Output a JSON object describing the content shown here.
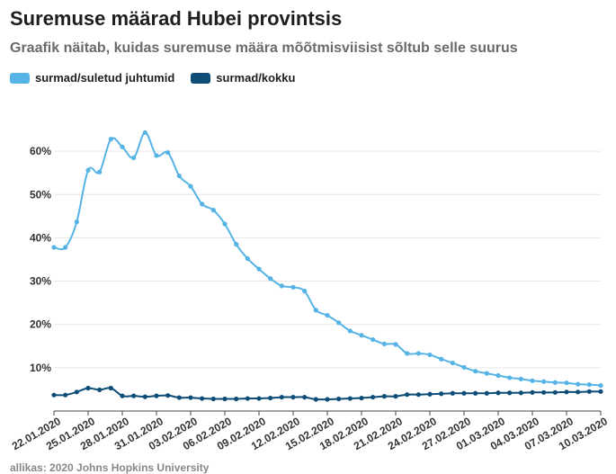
{
  "title": "Suremuse määrad Hubei provintsis",
  "subtitle": "Graafik näitab, kuidas suremuse määra mõõtmisviisist sõltub selle suurus",
  "source": "allikas: 2020 Johns Hopkins University",
  "colors": {
    "series1": "#55b3e6",
    "series2": "#0e4d78",
    "grid": "#e6e6e6",
    "axis": "#444444"
  },
  "chart_data": {
    "type": "line",
    "ylim": [
      0,
      70
    ],
    "yticks": [
      "10%",
      "20%",
      "30%",
      "40%",
      "50%",
      "60%"
    ],
    "ytick_values": [
      10,
      20,
      30,
      40,
      50,
      60
    ],
    "xticks": [
      "22.01.2020",
      "25.01.2020",
      "28.01.2020",
      "31.01.2020",
      "03.02.2020",
      "06.02.2020",
      "09.02.2020",
      "12.02.2020",
      "15.02.2020",
      "18.02.2020",
      "21.02.2020",
      "24.02.2020",
      "27.02.2020",
      "01.03.2020",
      "04.03.2020",
      "07.03.2020",
      "10.03.2020"
    ],
    "grid": true,
    "legend_position": "top-left",
    "series": [
      {
        "name": "surmad/suletud juhtumid",
        "values": [
          37.8,
          37.8,
          43.7,
          55.6,
          55.2,
          62.8,
          61.0,
          58.5,
          64.3,
          59.0,
          59.7,
          54.3,
          51.9,
          47.8,
          46.4,
          43.2,
          38.5,
          35.2,
          32.8,
          30.6,
          28.9,
          28.6,
          27.7,
          23.3,
          22.1,
          20.4,
          18.5,
          17.5,
          16.5,
          15.5,
          15.4,
          13.3,
          13.3,
          13.0,
          12.0,
          11.1,
          10.1,
          9.2,
          8.7,
          8.2,
          7.7,
          7.4,
          7.0,
          6.8,
          6.6,
          6.5,
          6.2,
          6.1,
          5.9
        ]
      },
      {
        "name": "surmad/kokku",
        "values": [
          3.7,
          3.7,
          4.4,
          5.3,
          4.9,
          5.3,
          3.5,
          3.5,
          3.3,
          3.5,
          3.6,
          3.1,
          3.1,
          2.9,
          2.8,
          2.8,
          2.8,
          2.9,
          2.9,
          3.0,
          3.2,
          3.2,
          3.2,
          2.7,
          2.7,
          2.8,
          2.9,
          3.0,
          3.2,
          3.4,
          3.4,
          3.8,
          3.8,
          3.9,
          4.0,
          4.1,
          4.1,
          4.1,
          4.1,
          4.2,
          4.2,
          4.2,
          4.3,
          4.3,
          4.3,
          4.4,
          4.4,
          4.5,
          4.5
        ]
      }
    ]
  }
}
